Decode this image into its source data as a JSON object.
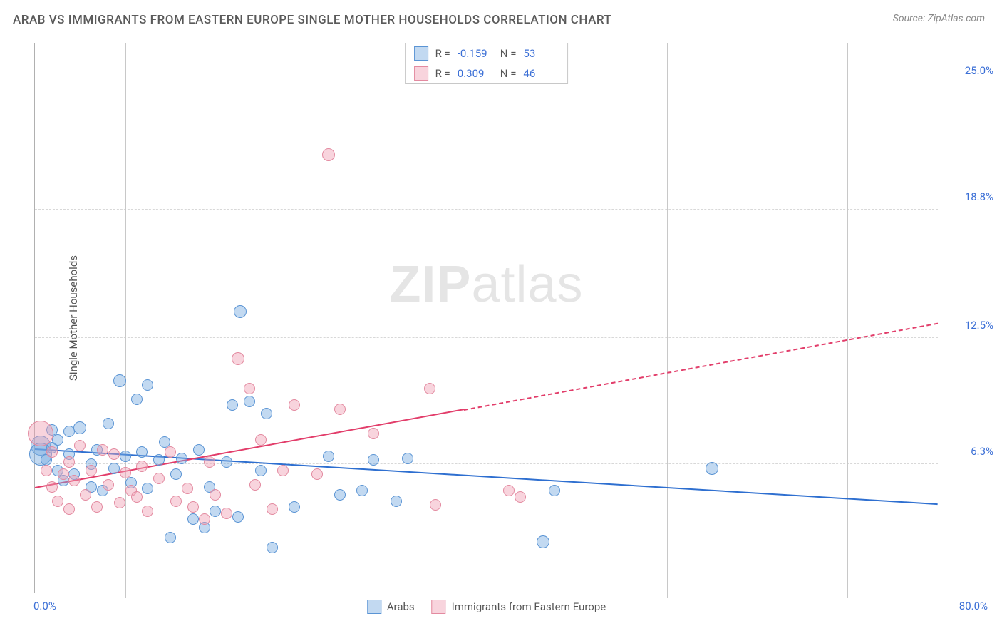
{
  "header": {
    "title": "ARAB VS IMMIGRANTS FROM EASTERN EUROPE SINGLE MOTHER HOUSEHOLDS CORRELATION CHART",
    "source_prefix": "Source: ",
    "source_name": "ZipAtlas.com"
  },
  "watermark": {
    "part1": "ZIP",
    "part2": "atlas"
  },
  "chart": {
    "type": "scatter",
    "background_color": "#ffffff",
    "grid_color": "#d8d8d8",
    "axis_color": "#b0b0b0",
    "label_color": "#555555",
    "value_color": "#3b6fd6",
    "xlim": [
      0,
      80
    ],
    "ylim": [
      0,
      27
    ],
    "x_min_label": "0.0%",
    "x_max_label": "80.0%",
    "y_ticks": [
      {
        "v": 6.3,
        "label": "6.3%"
      },
      {
        "v": 12.5,
        "label": "12.5%"
      },
      {
        "v": 18.8,
        "label": "18.8%"
      },
      {
        "v": 25.0,
        "label": "25.0%"
      }
    ],
    "x_gridlines": [
      8,
      24,
      40,
      56,
      72
    ],
    "ylabel": "Single Mother Households",
    "series": [
      {
        "key": "arabs",
        "label": "Arabs",
        "fill": "rgba(120,170,225,0.45)",
        "stroke": "#5a94d4",
        "line_color": "#2e6fd0",
        "r_label": "R = ",
        "r_value": "-0.159",
        "n_label": "N = ",
        "n_value": "53",
        "trend": {
          "x1": 0,
          "y1": 7.0,
          "x2": 80,
          "y2": 4.3,
          "dash_from": 80
        },
        "points": [
          {
            "x": 0.5,
            "y": 7.2,
            "r": 14
          },
          {
            "x": 0.5,
            "y": 6.8,
            "r": 16
          },
          {
            "x": 1,
            "y": 6.5,
            "r": 8
          },
          {
            "x": 1.5,
            "y": 7.1,
            "r": 8
          },
          {
            "x": 1.5,
            "y": 8.0,
            "r": 8
          },
          {
            "x": 2,
            "y": 6.0,
            "r": 8
          },
          {
            "x": 2,
            "y": 7.5,
            "r": 8
          },
          {
            "x": 2.5,
            "y": 5.5,
            "r": 8
          },
          {
            "x": 3,
            "y": 6.8,
            "r": 8
          },
          {
            "x": 3,
            "y": 7.9,
            "r": 8
          },
          {
            "x": 3.5,
            "y": 5.8,
            "r": 8
          },
          {
            "x": 4,
            "y": 8.1,
            "r": 9
          },
          {
            "x": 5,
            "y": 6.3,
            "r": 8
          },
          {
            "x": 5,
            "y": 5.2,
            "r": 8
          },
          {
            "x": 5.5,
            "y": 7.0,
            "r": 8
          },
          {
            "x": 6,
            "y": 5.0,
            "r": 8
          },
          {
            "x": 6.5,
            "y": 8.3,
            "r": 8
          },
          {
            "x": 7,
            "y": 6.1,
            "r": 8
          },
          {
            "x": 7.5,
            "y": 10.4,
            "r": 9
          },
          {
            "x": 8,
            "y": 6.7,
            "r": 8
          },
          {
            "x": 8.5,
            "y": 5.4,
            "r": 8
          },
          {
            "x": 9,
            "y": 9.5,
            "r": 8
          },
          {
            "x": 9.5,
            "y": 6.9,
            "r": 8
          },
          {
            "x": 10,
            "y": 5.1,
            "r": 8
          },
          {
            "x": 10,
            "y": 10.2,
            "r": 8
          },
          {
            "x": 11,
            "y": 6.5,
            "r": 8
          },
          {
            "x": 11.5,
            "y": 7.4,
            "r": 8
          },
          {
            "x": 12,
            "y": 2.7,
            "r": 8
          },
          {
            "x": 12.5,
            "y": 5.8,
            "r": 8
          },
          {
            "x": 13,
            "y": 6.6,
            "r": 8
          },
          {
            "x": 14,
            "y": 3.6,
            "r": 8
          },
          {
            "x": 14.5,
            "y": 7.0,
            "r": 8
          },
          {
            "x": 15,
            "y": 3.2,
            "r": 8
          },
          {
            "x": 15.5,
            "y": 5.2,
            "r": 8
          },
          {
            "x": 16,
            "y": 4.0,
            "r": 8
          },
          {
            "x": 17,
            "y": 6.4,
            "r": 8
          },
          {
            "x": 17.5,
            "y": 9.2,
            "r": 8
          },
          {
            "x": 18,
            "y": 3.7,
            "r": 8
          },
          {
            "x": 18.2,
            "y": 13.8,
            "r": 9
          },
          {
            "x": 19,
            "y": 9.4,
            "r": 8
          },
          {
            "x": 20,
            "y": 6.0,
            "r": 8
          },
          {
            "x": 20.5,
            "y": 8.8,
            "r": 8
          },
          {
            "x": 21,
            "y": 2.2,
            "r": 8
          },
          {
            "x": 23,
            "y": 4.2,
            "r": 8
          },
          {
            "x": 26,
            "y": 6.7,
            "r": 8
          },
          {
            "x": 27,
            "y": 4.8,
            "r": 8
          },
          {
            "x": 29,
            "y": 5.0,
            "r": 8
          },
          {
            "x": 30,
            "y": 6.5,
            "r": 8
          },
          {
            "x": 32,
            "y": 4.5,
            "r": 8
          },
          {
            "x": 33,
            "y": 6.6,
            "r": 8
          },
          {
            "x": 45,
            "y": 2.5,
            "r": 9
          },
          {
            "x": 46,
            "y": 5.0,
            "r": 8
          },
          {
            "x": 60,
            "y": 6.1,
            "r": 9
          }
        ]
      },
      {
        "key": "ee",
        "label": "Immigrants from Eastern Europe",
        "fill": "rgba(240,160,180,0.45)",
        "stroke": "#e38aa0",
        "line_color": "#e23d6a",
        "r_label": "R = ",
        "r_value": "0.309",
        "n_label": "N = ",
        "n_value": "46",
        "trend": {
          "x1": 0,
          "y1": 5.1,
          "x2": 80,
          "y2": 13.2,
          "dash_from": 38
        },
        "points": [
          {
            "x": 0.5,
            "y": 7.8,
            "r": 18
          },
          {
            "x": 1,
            "y": 6.0,
            "r": 8
          },
          {
            "x": 1.5,
            "y": 6.9,
            "r": 8
          },
          {
            "x": 1.5,
            "y": 5.2,
            "r": 8
          },
          {
            "x": 2,
            "y": 4.5,
            "r": 8
          },
          {
            "x": 2.5,
            "y": 5.8,
            "r": 8
          },
          {
            "x": 3,
            "y": 6.4,
            "r": 8
          },
          {
            "x": 3,
            "y": 4.1,
            "r": 8
          },
          {
            "x": 3.5,
            "y": 5.5,
            "r": 8
          },
          {
            "x": 4,
            "y": 7.2,
            "r": 8
          },
          {
            "x": 4.5,
            "y": 4.8,
            "r": 8
          },
          {
            "x": 5,
            "y": 6.0,
            "r": 8
          },
          {
            "x": 5.5,
            "y": 4.2,
            "r": 8
          },
          {
            "x": 6,
            "y": 7.0,
            "r": 8
          },
          {
            "x": 6.5,
            "y": 5.3,
            "r": 8
          },
          {
            "x": 7,
            "y": 6.8,
            "r": 8
          },
          {
            "x": 7.5,
            "y": 4.4,
            "r": 8
          },
          {
            "x": 8,
            "y": 5.9,
            "r": 8
          },
          {
            "x": 8.5,
            "y": 5.0,
            "r": 8
          },
          {
            "x": 9,
            "y": 4.7,
            "r": 8
          },
          {
            "x": 9.5,
            "y": 6.2,
            "r": 8
          },
          {
            "x": 10,
            "y": 4.0,
            "r": 8
          },
          {
            "x": 11,
            "y": 5.6,
            "r": 8
          },
          {
            "x": 12,
            "y": 6.9,
            "r": 8
          },
          {
            "x": 12.5,
            "y": 4.5,
            "r": 8
          },
          {
            "x": 13.5,
            "y": 5.1,
            "r": 8
          },
          {
            "x": 14,
            "y": 4.2,
            "r": 8
          },
          {
            "x": 15,
            "y": 3.6,
            "r": 8
          },
          {
            "x": 15.5,
            "y": 6.4,
            "r": 8
          },
          {
            "x": 16,
            "y": 4.8,
            "r": 8
          },
          {
            "x": 17,
            "y": 3.9,
            "r": 8
          },
          {
            "x": 18,
            "y": 11.5,
            "r": 9
          },
          {
            "x": 19,
            "y": 10.0,
            "r": 8
          },
          {
            "x": 19.5,
            "y": 5.3,
            "r": 8
          },
          {
            "x": 20,
            "y": 7.5,
            "r": 8
          },
          {
            "x": 21,
            "y": 4.1,
            "r": 8
          },
          {
            "x": 22,
            "y": 6.0,
            "r": 8
          },
          {
            "x": 23,
            "y": 9.2,
            "r": 8
          },
          {
            "x": 25,
            "y": 5.8,
            "r": 8
          },
          {
            "x": 26,
            "y": 21.5,
            "r": 9
          },
          {
            "x": 27,
            "y": 9.0,
            "r": 8
          },
          {
            "x": 30,
            "y": 7.8,
            "r": 8
          },
          {
            "x": 35,
            "y": 10.0,
            "r": 8
          },
          {
            "x": 35.5,
            "y": 4.3,
            "r": 8
          },
          {
            "x": 42,
            "y": 5.0,
            "r": 8
          },
          {
            "x": 43,
            "y": 4.7,
            "r": 8
          }
        ]
      }
    ]
  }
}
